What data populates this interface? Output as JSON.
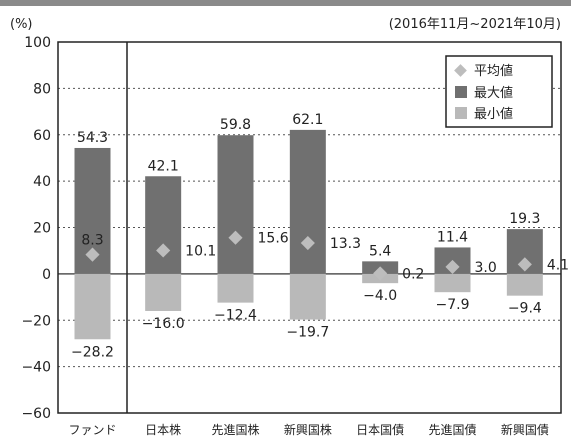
{
  "chart_data": {
    "type": "bar",
    "unit_label": "(%)",
    "period": "(2016年11月~2021年10月)",
    "categories": [
      "ファンド",
      "日本株",
      "先進国株",
      "新興国株",
      "日本国債",
      "先進国債",
      "新興国債"
    ],
    "ylim": [
      -60,
      100
    ],
    "yticks": [
      "100",
      "80",
      "60",
      "40",
      "20",
      "0",
      "−20",
      "−40",
      "−60"
    ],
    "ytick_values": [
      100,
      80,
      60,
      40,
      20,
      0,
      -20,
      -40,
      -60
    ],
    "grid": true,
    "legend_position": "top-right",
    "series": [
      {
        "name": "平均値",
        "values": [
          8.3,
          10.1,
          15.6,
          13.3,
          0.2,
          3.0,
          4.1
        ],
        "labels": [
          "8.3",
          "10.1",
          "15.6",
          "13.3",
          "0.2",
          "3.0",
          "4.1"
        ]
      },
      {
        "name": "最大値",
        "values": [
          54.3,
          42.1,
          59.8,
          62.1,
          5.4,
          11.4,
          19.3
        ],
        "labels": [
          "54.3",
          "42.1",
          "59.8",
          "62.1",
          "5.4",
          "11.4",
          "19.3"
        ]
      },
      {
        "name": "最小値",
        "values": [
          -28.2,
          -16.0,
          -12.4,
          -19.7,
          -4.0,
          -7.9,
          -9.4
        ],
        "labels": [
          "−28.2",
          "−16.0",
          "−12.4",
          "−19.7",
          "−4.0",
          "−7.9",
          "−9.4"
        ]
      }
    ],
    "colors": {
      "average": "#bdbdbd",
      "max": "#707070",
      "min": "#b9b9b9",
      "axis": "#222222",
      "grid": "#555555"
    }
  }
}
